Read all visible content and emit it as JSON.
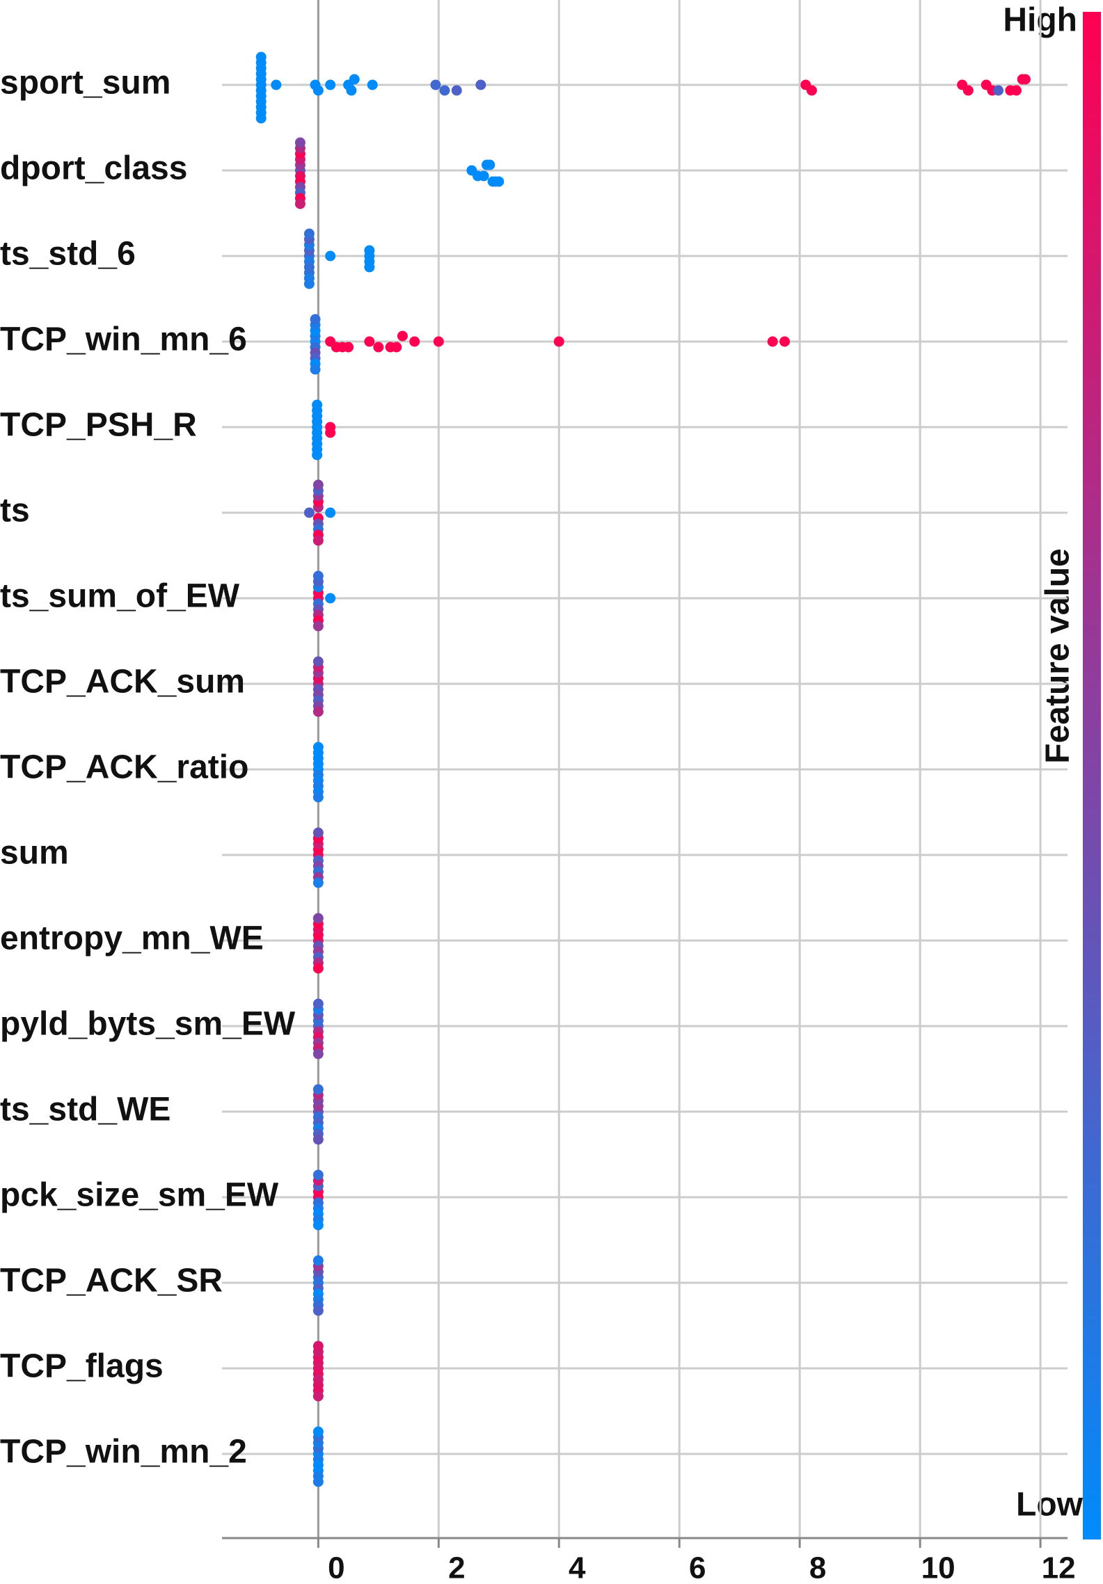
{
  "chart_data": {
    "type": "beeswarm",
    "xlim": [
      -1.6,
      12.45
    ],
    "xticks": [
      0,
      2,
      4,
      6,
      8,
      10,
      12
    ],
    "grid": true,
    "color_low": "#008bfb",
    "color_high": "#ff0052",
    "legend_high": "High",
    "legend_low": "Low",
    "colorbar_label": "Feature value",
    "series": [
      {
        "name": "sport_sum",
        "values": [
          -0.95,
          -0.95,
          -0.95,
          -0.95,
          -0.95,
          -0.95,
          -0.95,
          -0.95,
          -0.95,
          -0.95,
          -0.95,
          -0.95,
          -0.7,
          -0.05,
          0,
          0.2,
          0.5,
          0.55,
          0.6,
          0.9,
          1.95,
          2.1,
          2.3,
          2.7,
          8.1,
          8.2,
          10.7,
          10.8,
          11.1,
          11.2,
          11.3,
          11.5,
          11.6,
          11.7,
          11.75
        ],
        "feature_values": [
          0,
          0,
          0,
          0,
          0,
          0,
          0,
          0,
          0,
          0,
          0,
          0,
          0,
          0,
          0,
          0,
          0,
          0,
          0,
          0,
          0.25,
          0.25,
          0.3,
          0.3,
          1,
          1,
          1,
          1,
          1,
          1,
          0.3,
          1,
          1,
          1,
          1
        ]
      },
      {
        "name": "dport_class",
        "values": [
          -0.3,
          -0.3,
          -0.3,
          -0.3,
          -0.3,
          -0.3,
          -0.3,
          -0.3,
          -0.3,
          -0.3,
          -0.3,
          -0.3,
          2.55,
          2.65,
          2.75,
          2.8,
          2.85,
          2.9,
          2.95,
          3.0
        ],
        "feature_values": [
          0.4,
          0.9,
          0.6,
          1,
          0.8,
          0.5,
          1,
          0.3,
          0.7,
          1,
          0.5,
          0.8,
          0,
          0,
          0,
          0,
          0,
          0,
          0,
          0
        ]
      },
      {
        "name": "ts_std_6",
        "values": [
          -0.15,
          -0.15,
          -0.15,
          -0.15,
          -0.15,
          -0.15,
          -0.15,
          -0.15,
          -0.15,
          -0.15,
          0.2,
          0.85,
          0.85,
          0.85,
          0.85
        ],
        "feature_values": [
          0.2,
          0.1,
          0.3,
          0.2,
          0.1,
          0.2,
          0.3,
          0.1,
          0.2,
          0.1,
          0,
          0,
          0,
          0,
          0
        ]
      },
      {
        "name": "TCP_win_mn_6",
        "values": [
          -0.05,
          -0.05,
          -0.05,
          -0.05,
          -0.05,
          -0.05,
          -0.05,
          -0.05,
          -0.05,
          -0.05,
          0.2,
          0.3,
          0.4,
          0.5,
          0.85,
          1.0,
          1.2,
          1.3,
          1.4,
          1.6,
          2.0,
          4.0,
          7.55,
          7.75
        ],
        "feature_values": [
          0,
          0.2,
          0.1,
          0.4,
          0,
          0.3,
          0.1,
          0,
          0.2,
          0.1,
          1,
          1,
          1,
          1,
          1,
          1,
          1,
          1,
          1,
          1,
          1,
          1,
          1,
          1
        ]
      },
      {
        "name": "TCP_PSH_R",
        "values": [
          -0.02,
          -0.02,
          -0.02,
          -0.02,
          -0.02,
          -0.02,
          -0.02,
          -0.02,
          -0.02,
          -0.02,
          0.2,
          0.2
        ],
        "feature_values": [
          0,
          0,
          0,
          0,
          0,
          0,
          0,
          0,
          0,
          0,
          1,
          1
        ]
      },
      {
        "name": "ts",
        "values": [
          -0.15,
          0,
          0,
          0,
          0,
          0,
          0,
          0,
          0,
          0,
          0,
          0.2
        ],
        "feature_values": [
          0.3,
          1,
          0.7,
          0.4,
          1,
          0.2,
          0.6,
          1,
          0.3,
          0.8,
          0.5,
          0
        ]
      },
      {
        "name": "ts_sum_of_EW",
        "values": [
          0,
          0,
          0,
          0,
          0,
          0,
          0,
          0,
          0,
          0,
          0.2
        ],
        "feature_values": [
          0.9,
          0.2,
          1,
          0.4,
          0.1,
          0.7,
          0.3,
          1,
          0.2,
          0.6,
          0
        ]
      },
      {
        "name": "TCP_ACK_sum",
        "values": [
          0,
          0,
          0,
          0,
          0,
          0,
          0,
          0,
          0,
          0
        ],
        "feature_values": [
          0.7,
          0.4,
          0.9,
          0.5,
          0.6,
          0.3,
          0.8,
          0.5,
          0.4,
          0.7
        ]
      },
      {
        "name": "TCP_ACK_ratio",
        "values": [
          0,
          0,
          0,
          0,
          0,
          0,
          0,
          0,
          0,
          0
        ],
        "feature_values": [
          0,
          0.1,
          0,
          0.05,
          0,
          0.1,
          0,
          0.05,
          0,
          0.1
        ]
      },
      {
        "name": "sum",
        "values": [
          0,
          0,
          0,
          0,
          0,
          0,
          0,
          0,
          0,
          0
        ],
        "feature_values": [
          0.9,
          0.3,
          1,
          0.5,
          0.8,
          0.2,
          1,
          0.6,
          0.4,
          0.1
        ]
      },
      {
        "name": "entropy_mn_WE",
        "values": [
          0,
          0,
          0,
          0,
          0,
          0,
          0,
          0,
          0,
          0
        ],
        "feature_values": [
          0.8,
          0.4,
          1,
          0.6,
          0.9,
          0.3,
          1,
          0.7,
          0.5,
          1
        ]
      },
      {
        "name": "pyld_byts_sm_EW",
        "values": [
          0,
          0,
          0,
          0,
          0,
          0,
          0,
          0,
          0,
          0
        ],
        "feature_values": [
          0.3,
          0.7,
          0.2,
          0.9,
          0.4,
          0.6,
          0.1,
          0.8,
          0.3,
          0.5
        ]
      },
      {
        "name": "ts_std_WE",
        "values": [
          0,
          0,
          0,
          0,
          0,
          0,
          0,
          0,
          0,
          0
        ],
        "feature_values": [
          0.4,
          0.2,
          0.6,
          0.3,
          0.5,
          0.1,
          0.7,
          0.3,
          0.2,
          0.4
        ]
      },
      {
        "name": "pck_size_sm_EW",
        "values": [
          0,
          0,
          0,
          0,
          0,
          0,
          0,
          0,
          0,
          0
        ],
        "feature_values": [
          0.9,
          0.2,
          1,
          0.1,
          0.3,
          0,
          0.8,
          0.1,
          0.2,
          0
        ]
      },
      {
        "name": "TCP_ACK_SR",
        "values": [
          0,
          0,
          0,
          0,
          0,
          0,
          0,
          0,
          0,
          0
        ],
        "feature_values": [
          0.1,
          0.3,
          0.2,
          0,
          0.4,
          0.1,
          0.6,
          0.2,
          0.1,
          0.3
        ]
      },
      {
        "name": "TCP_flags",
        "values": [
          0,
          0,
          0,
          0,
          0,
          0,
          0,
          0,
          0,
          0
        ],
        "feature_values": [
          0.85,
          0.9,
          0.85,
          0.8,
          0.9,
          0.85,
          0.8,
          0.9,
          0.85,
          0.8
        ]
      },
      {
        "name": "TCP_win_mn_2",
        "values": [
          0,
          0,
          0,
          0,
          0,
          0,
          0,
          0,
          0,
          0
        ],
        "feature_values": [
          0,
          0.1,
          0.2,
          0,
          0.1,
          0,
          0.2,
          0.1,
          0,
          0.1
        ]
      }
    ]
  }
}
